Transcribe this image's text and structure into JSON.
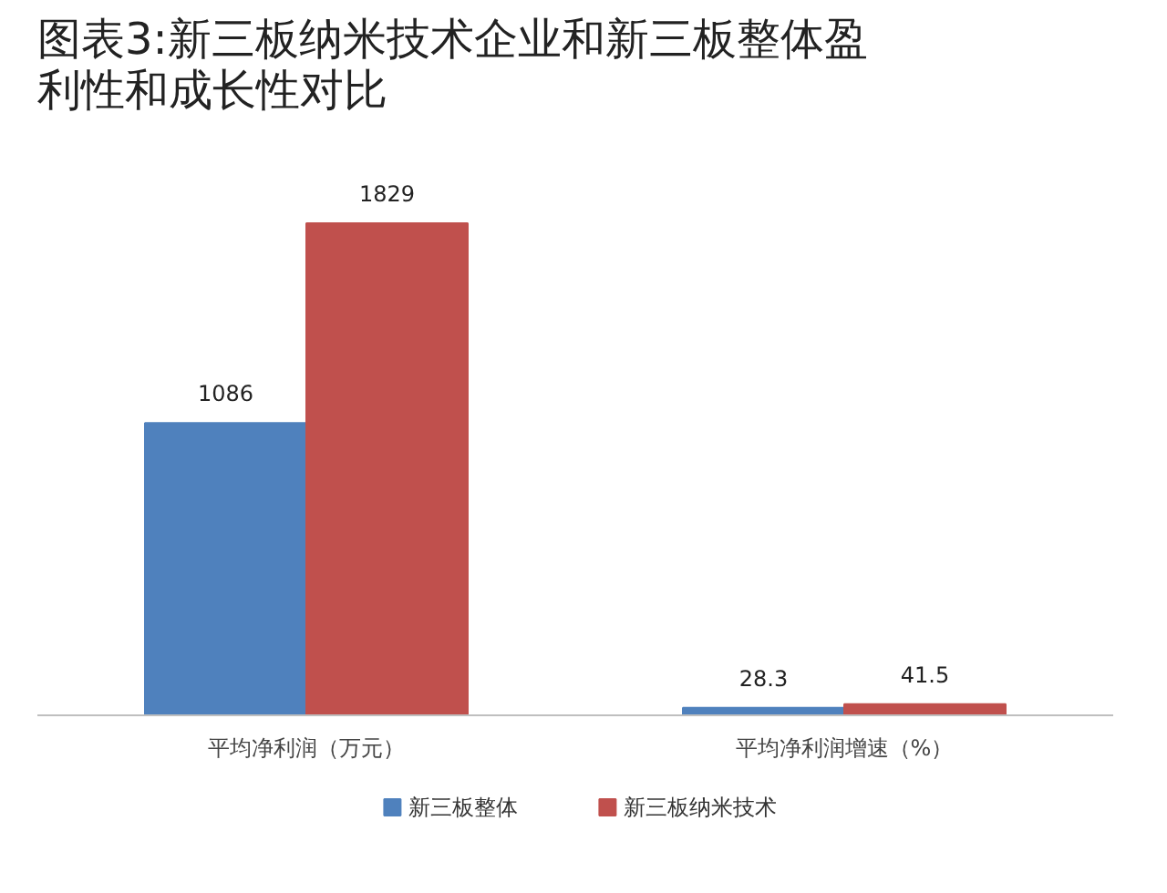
{
  "chart_data": {
    "type": "bar",
    "title": "图表3:新三板纳米技术企业和新三板整体盈利性和成长性对比",
    "categories": [
      "平均净利润（万元）",
      "平均净利润增速（%）"
    ],
    "series": [
      {
        "name": "新三板整体",
        "color": "#4f81bd",
        "values": [
          1086,
          28.3
        ]
      },
      {
        "name": "新三板纳米技术",
        "color": "#c0504d",
        "values": [
          1829,
          41.5
        ]
      }
    ],
    "data_labels": true,
    "legend": "bottom"
  }
}
